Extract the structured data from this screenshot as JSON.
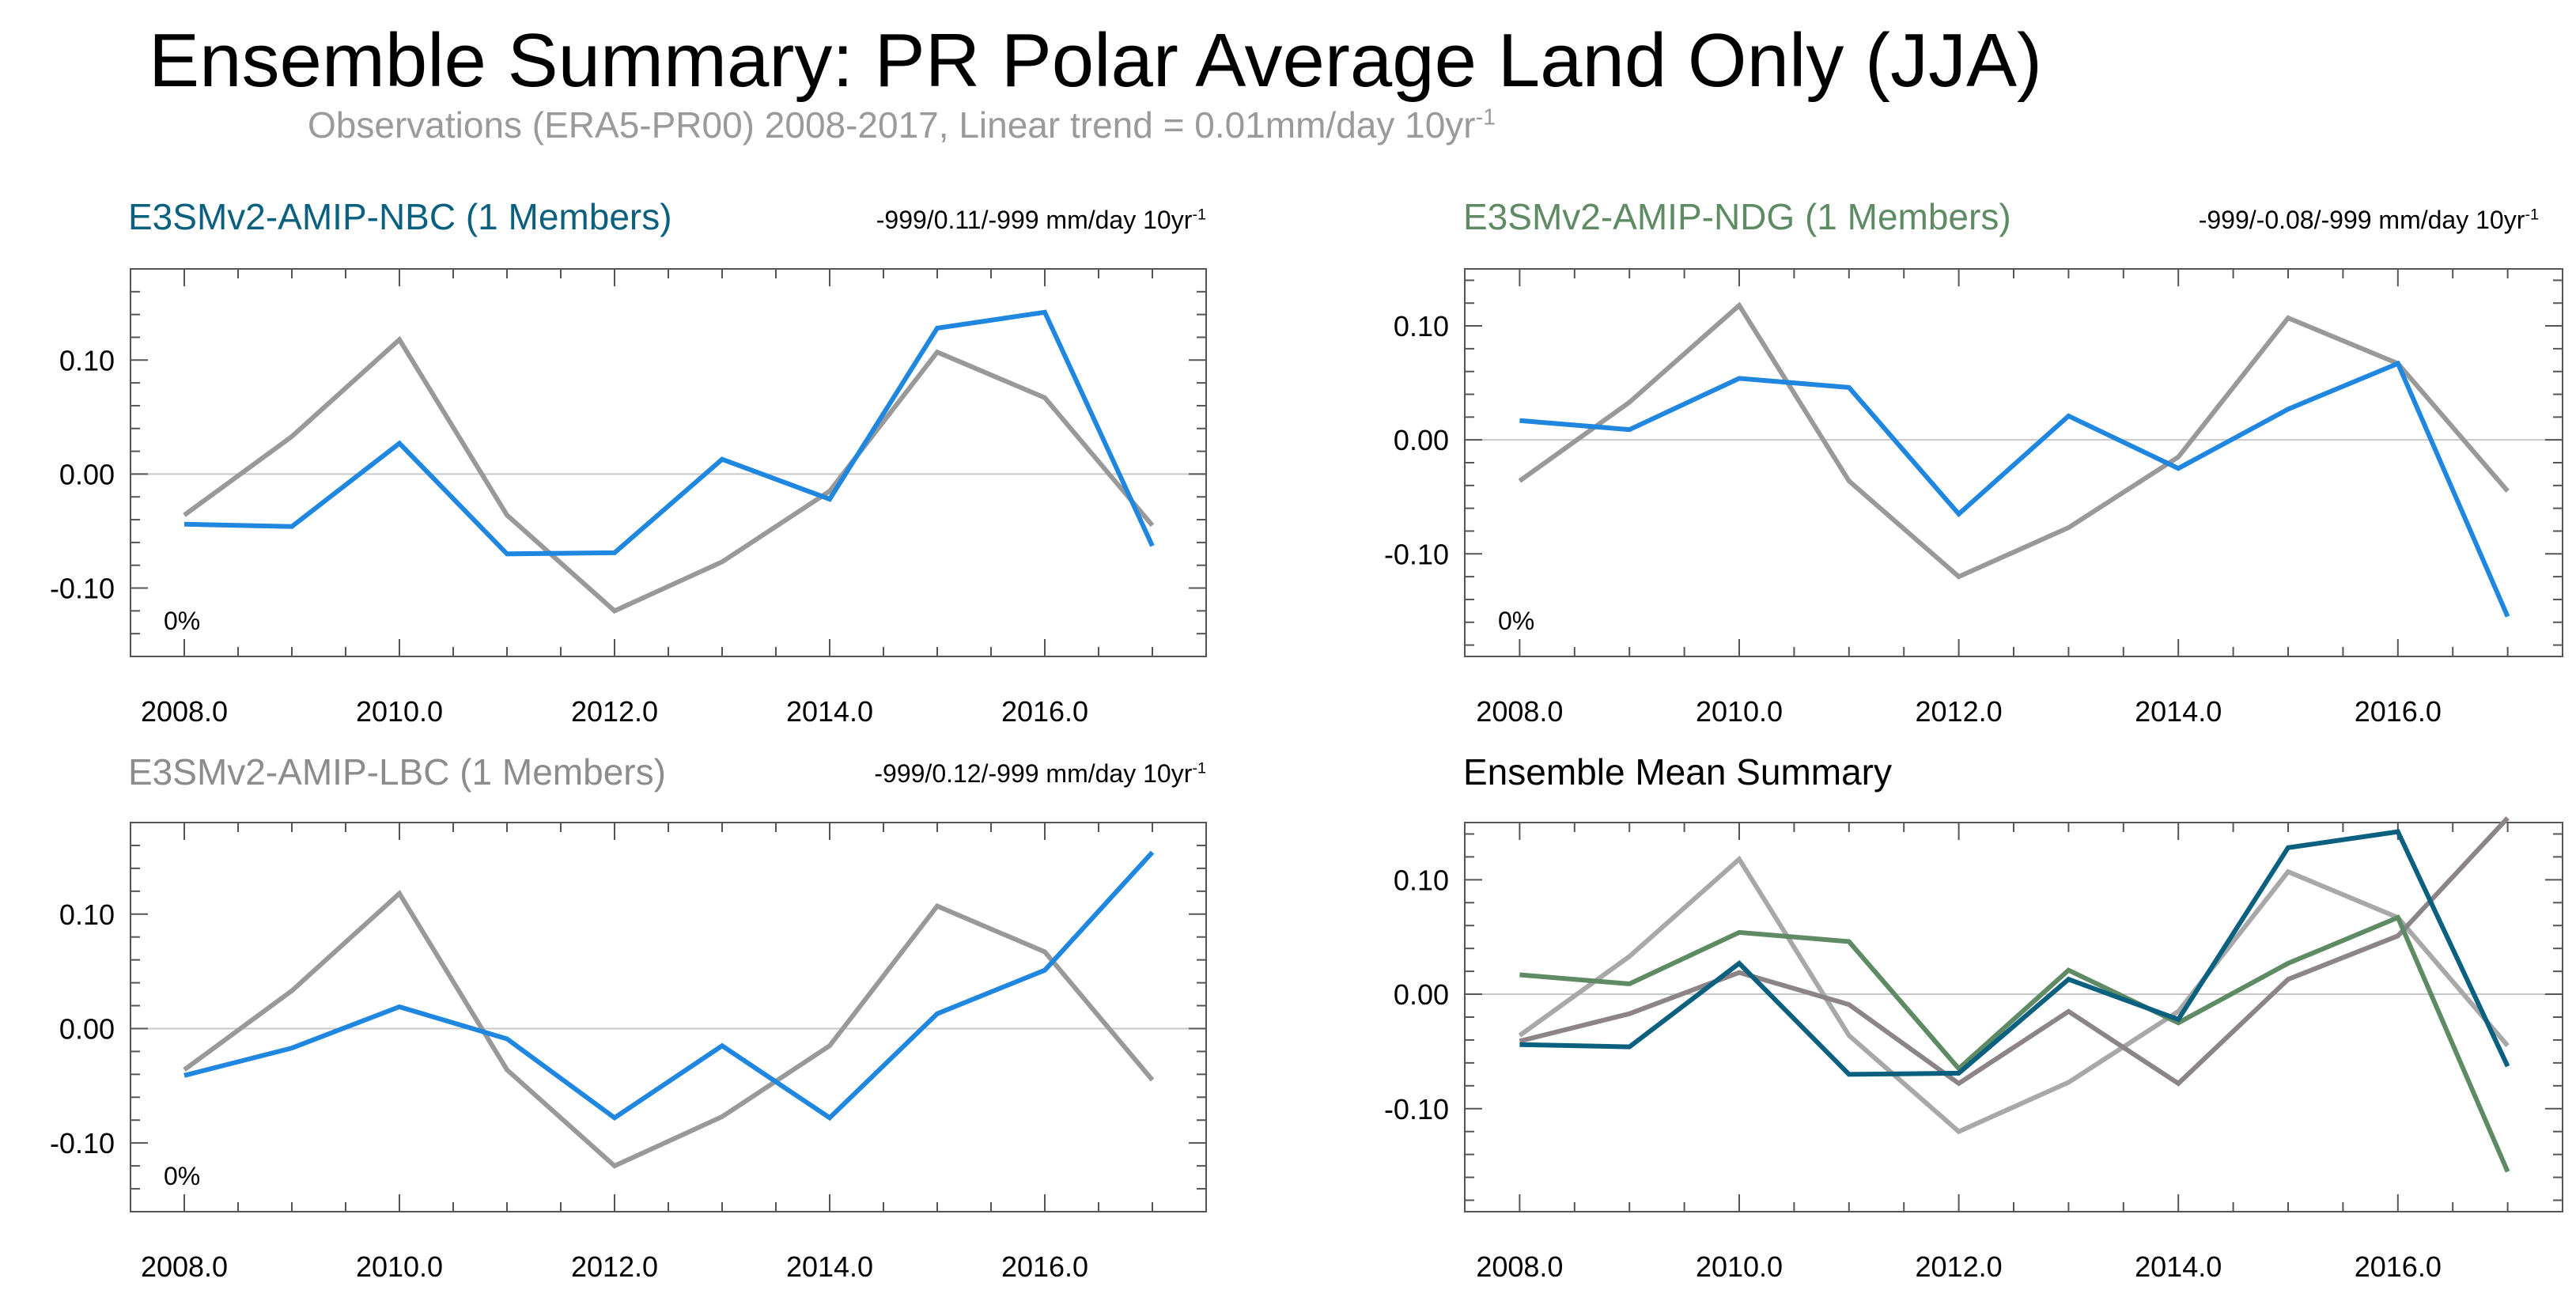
{
  "title": "Ensemble Summary: PR Polar Average Land Only (JJA)",
  "subtitle": {
    "text": "Observations (ERA5-PR00) 2008-2017, Linear trend = 0.01mm/day 10yr",
    "superscript": "-1"
  },
  "colors": {
    "observations": "#999999",
    "model_line": "#1f87e0",
    "nbc": "#0b5f7f",
    "ndg": "#5e8a64",
    "lbc": "#8c8c8c",
    "mean_title": "#000000",
    "axis": "#555555",
    "zero_line": "#c8c8c8"
  },
  "chart_data": [
    {
      "type": "line",
      "title": "E3SMv2-AMIP-NBC (1 Members)",
      "title_color": "#0b5f7f",
      "trend_label": "-999/0.11/-999 mm/day 10yr",
      "trend_superscript": "-1",
      "percent_label": "0%",
      "x": [
        2008,
        2009,
        2010,
        2011,
        2012,
        2013,
        2014,
        2015,
        2016,
        2017
      ],
      "xticks": [
        "2008.0",
        "2010.0",
        "2012.0",
        "2014.0",
        "2016.0"
      ],
      "yticks": [
        "0.10",
        "0.00",
        "-0.10"
      ],
      "ylim": [
        -0.16,
        0.18
      ],
      "xlim": [
        2007.5,
        2017.5
      ],
      "series": [
        {
          "role": "observations",
          "color": "#999999",
          "values": [
            -0.036,
            0.033,
            0.118,
            -0.036,
            -0.12,
            -0.077,
            -0.015,
            0.107,
            0.067,
            -0.045
          ]
        },
        {
          "role": "model",
          "color": "#1f87e0",
          "values": [
            -0.044,
            -0.046,
            0.027,
            -0.07,
            -0.069,
            0.013,
            -0.022,
            0.128,
            0.142,
            -0.063
          ]
        }
      ]
    },
    {
      "type": "line",
      "title": "E3SMv2-AMIP-NDG (1 Members)",
      "title_color": "#5e8a64",
      "trend_label": "-999/-0.08/-999 mm/day 10yr",
      "trend_superscript": "-1",
      "percent_label": "0%",
      "x": [
        2008,
        2009,
        2010,
        2011,
        2012,
        2013,
        2014,
        2015,
        2016,
        2017
      ],
      "xticks": [
        "2008.0",
        "2010.0",
        "2012.0",
        "2014.0",
        "2016.0"
      ],
      "yticks": [
        "0.10",
        "0.00",
        "-0.10"
      ],
      "ylim": [
        -0.19,
        0.15
      ],
      "xlim": [
        2007.5,
        2017.5
      ],
      "series": [
        {
          "role": "observations",
          "color": "#999999",
          "values": [
            -0.036,
            0.033,
            0.118,
            -0.036,
            -0.12,
            -0.077,
            -0.015,
            0.107,
            0.067,
            -0.045
          ]
        },
        {
          "role": "model",
          "color": "#1f87e0",
          "values": [
            0.017,
            0.009,
            0.054,
            0.046,
            -0.065,
            0.021,
            -0.025,
            0.027,
            0.067,
            -0.155
          ]
        }
      ]
    },
    {
      "type": "line",
      "title": "E3SMv2-AMIP-LBC (1 Members)",
      "title_color": "#8c8c8c",
      "trend_label": "-999/0.12/-999 mm/day 10yr",
      "trend_superscript": "-1",
      "percent_label": "0%",
      "x": [
        2008,
        2009,
        2010,
        2011,
        2012,
        2013,
        2014,
        2015,
        2016,
        2017
      ],
      "xticks": [
        "2008.0",
        "2010.0",
        "2012.0",
        "2014.0",
        "2016.0"
      ],
      "yticks": [
        "0.10",
        "0.00",
        "-0.10"
      ],
      "ylim": [
        -0.16,
        0.18
      ],
      "xlim": [
        2007.5,
        2017.5
      ],
      "series": [
        {
          "role": "observations",
          "color": "#999999",
          "values": [
            -0.036,
            0.033,
            0.118,
            -0.036,
            -0.12,
            -0.077,
            -0.015,
            0.107,
            0.067,
            -0.045
          ]
        },
        {
          "role": "model",
          "color": "#1f87e0",
          "values": [
            -0.041,
            -0.017,
            0.019,
            -0.009,
            -0.078,
            -0.015,
            -0.078,
            0.013,
            0.051,
            0.154
          ]
        }
      ]
    },
    {
      "type": "line",
      "title": "Ensemble Mean Summary",
      "title_color": "#000000",
      "trend_label": "",
      "trend_superscript": "",
      "percent_label": "",
      "x": [
        2008,
        2009,
        2010,
        2011,
        2012,
        2013,
        2014,
        2015,
        2016,
        2017
      ],
      "xticks": [
        "2008.0",
        "2010.0",
        "2012.0",
        "2014.0",
        "2016.0"
      ],
      "yticks": [
        "0.10",
        "0.00",
        "-0.10"
      ],
      "ylim": [
        -0.19,
        0.15
      ],
      "xlim": [
        2007.5,
        2017.5
      ],
      "series": [
        {
          "role": "observations",
          "color": "#a8a8a8",
          "values": [
            -0.036,
            0.033,
            0.118,
            -0.036,
            -0.12,
            -0.077,
            -0.015,
            0.107,
            0.067,
            -0.045
          ]
        },
        {
          "role": "lbc",
          "color": "#8c8487",
          "values": [
            -0.041,
            -0.017,
            0.019,
            -0.009,
            -0.078,
            -0.015,
            -0.078,
            0.013,
            0.051,
            0.154
          ]
        },
        {
          "role": "ndg",
          "color": "#5e8a64",
          "values": [
            0.017,
            0.009,
            0.054,
            0.046,
            -0.065,
            0.021,
            -0.025,
            0.027,
            0.067,
            -0.155
          ]
        },
        {
          "role": "nbc",
          "color": "#0b5f7f",
          "values": [
            -0.044,
            -0.046,
            0.027,
            -0.07,
            -0.069,
            0.013,
            -0.022,
            0.128,
            0.142,
            -0.063
          ]
        }
      ]
    }
  ]
}
